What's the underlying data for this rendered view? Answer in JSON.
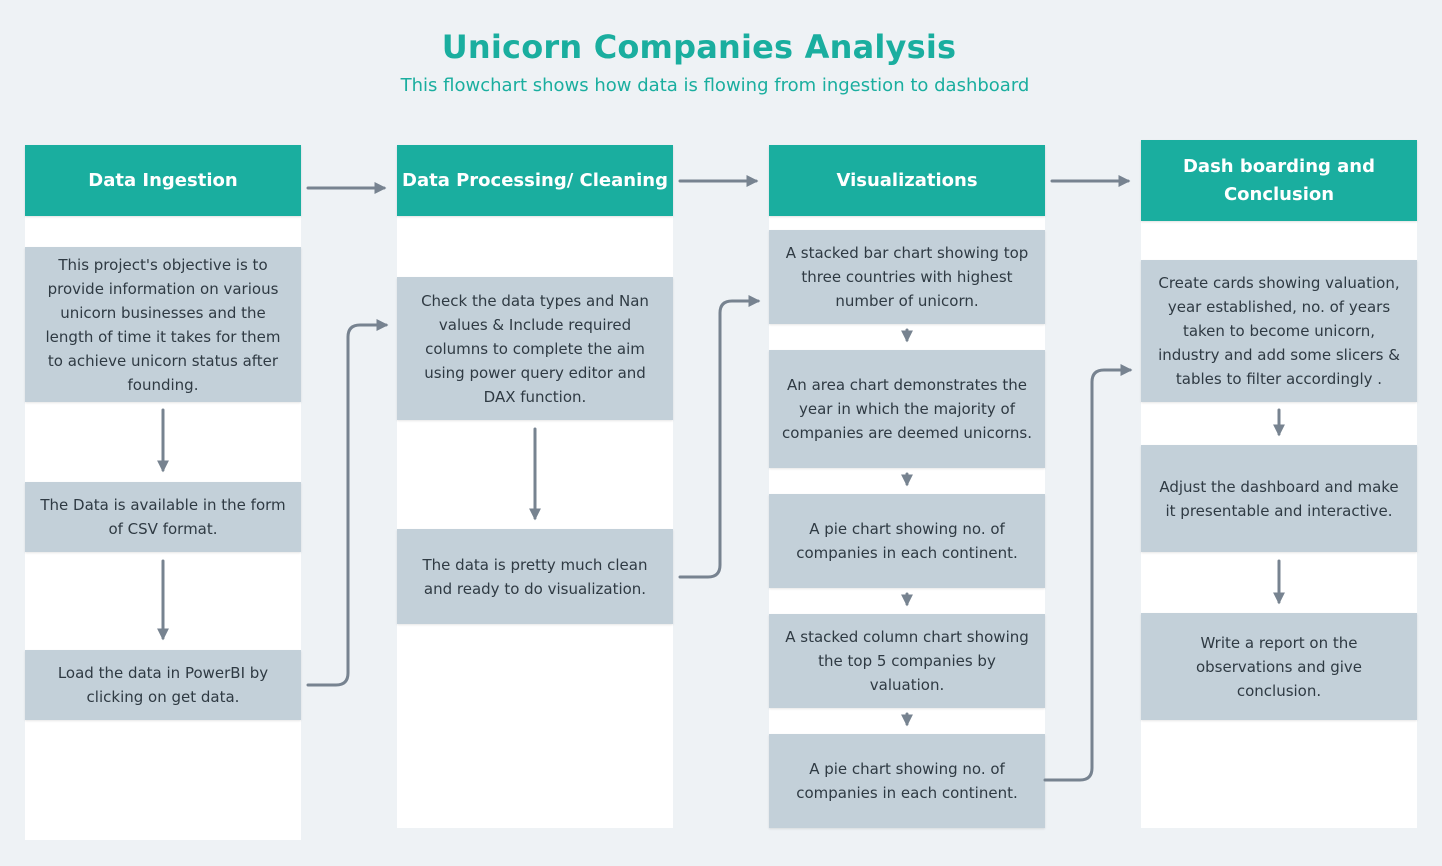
{
  "header": {
    "title": "Unicorn Companies Analysis",
    "subtitle": "This flowchart shows how data is flowing from ingestion to dashboard"
  },
  "colors": {
    "accent": "#1aae9f",
    "card": "#c3d0d9",
    "connector": "#778390",
    "background": "#eef2f5"
  },
  "stages": [
    {
      "title": "Data Ingestion",
      "steps": [
        "This project's objective is to provide information on various unicorn businesses and the length of time it takes for them to achieve unicorn status after founding.",
        "The Data is available in the form of CSV format.",
        "Load the data in PowerBI by clicking on get data."
      ]
    },
    {
      "title": "Data Processing/ Cleaning",
      "steps": [
        "Check the data types and Nan values & Include required columns to complete the aim using power query editor and DAX function.",
        "The data is pretty much clean and ready to do visualization."
      ]
    },
    {
      "title": "Visualizations",
      "steps": [
        "A stacked bar chart showing top three countries with highest number of unicorn.",
        "An area chart demonstrates the year in which the majority of companies are deemed unicorns.",
        "A pie chart showing no. of companies in each continent.",
        "A stacked column chart showing the top 5 companies by valuation.",
        "A pie chart showing no. of companies in each continent."
      ]
    },
    {
      "title": "Dash boarding and Conclusion",
      "steps": [
        "Create cards showing valuation, year established, no. of years taken to become unicorn, industry and add some slicers & tables to filter accordingly .",
        "Adjust the dashboard and make it presentable and interactive.",
        "Write a report on the observations and give conclusion."
      ]
    }
  ]
}
